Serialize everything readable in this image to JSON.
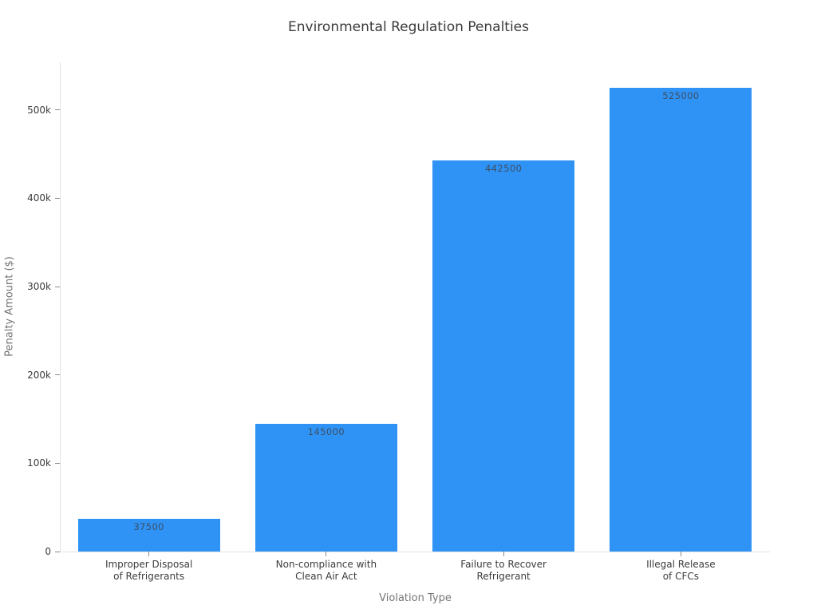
{
  "figure_title": "Environmental Regulation Penalties",
  "chart_data": {
    "type": "bar",
    "title": "Environmental Regulation Penalties",
    "xlabel": "Violation Type",
    "ylabel": "Penalty Amount ($)",
    "categories": [
      "Improper Disposal\nof Refrigerants",
      "Non-compliance with\nClean Air Act",
      "Failure to Recover\nRefrigerant",
      "Illegal Release\nof CFCs"
    ],
    "values": [
      37500,
      145000,
      442500,
      525000
    ],
    "bar_labels": [
      "37500",
      "145000",
      "442500",
      "525000"
    ],
    "y_ticks": [
      {
        "value": 0,
        "label": "0"
      },
      {
        "value": 100000,
        "label": "100k"
      },
      {
        "value": 200000,
        "label": "200k"
      },
      {
        "value": 300000,
        "label": "300k"
      },
      {
        "value": 400000,
        "label": "400k"
      },
      {
        "value": 500000,
        "label": "500k"
      }
    ],
    "ylim": [
      0,
      554000
    ],
    "grid": false,
    "legend": "none",
    "bar_gap_fraction": 0.2,
    "colors": {
      "bar": "#2f93f5",
      "title_text": "#3a3a3a",
      "tick_text": "#3b3b3b",
      "axis_title_text": "#757575",
      "bar_label_text": "#3e4f66",
      "axis_line": "#e3e3e3",
      "tick_mark": "#8a8a8a",
      "background": "#ffffff"
    }
  }
}
